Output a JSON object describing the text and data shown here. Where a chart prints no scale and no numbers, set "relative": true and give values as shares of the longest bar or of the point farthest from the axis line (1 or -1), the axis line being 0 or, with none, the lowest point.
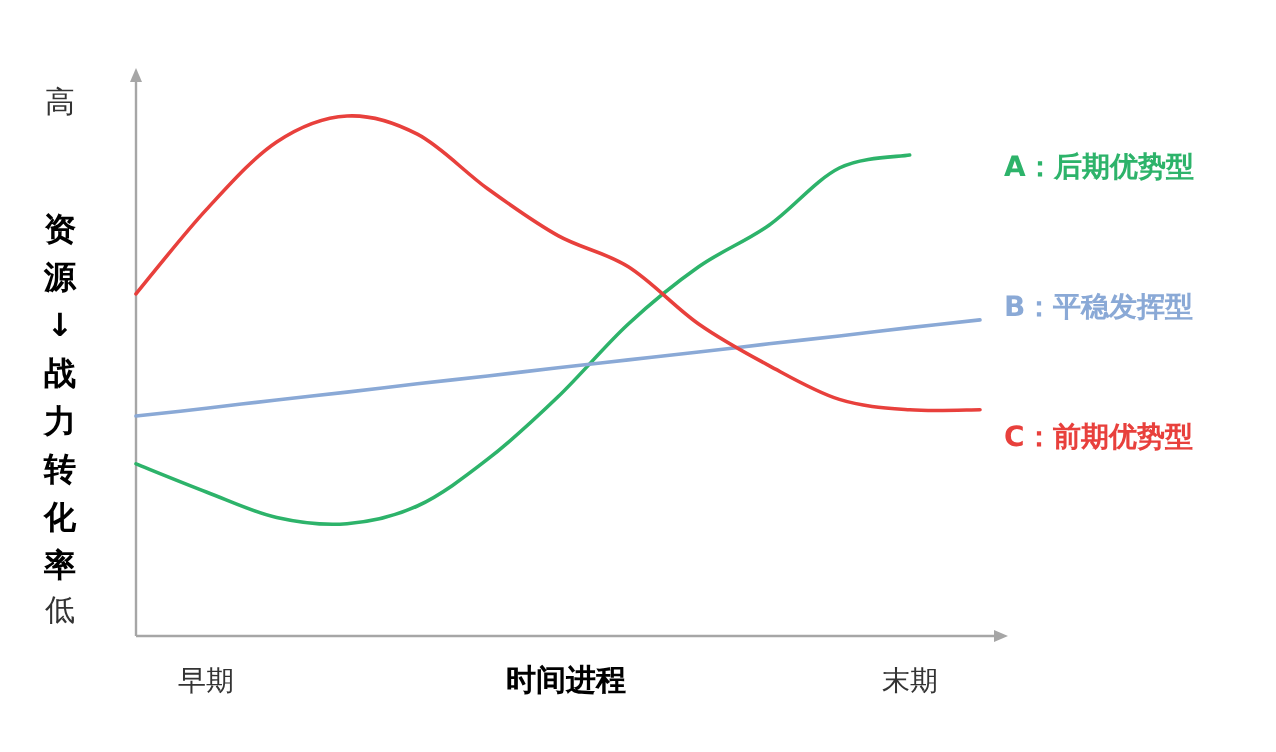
{
  "chart_data": {
    "type": "line",
    "relative": true,
    "xlabel": "时间进程",
    "ylabel": "资源↓战力转化率",
    "annotations": [
      "高",
      "低"
    ],
    "categories": [
      null,
      "早期",
      null,
      null,
      null,
      null,
      null,
      null,
      null,
      null,
      null,
      "末期",
      null
    ],
    "legend": "right",
    "marker": "none",
    "line_style": "solid",
    "series": [
      {
        "name": "A：后期优势型",
        "color": "#2db36a",
        "values": [
          0.331,
          0.277,
          0.228,
          0.216,
          0.25,
          0.34,
          0.46,
          0.6,
          0.71,
          0.79,
          0.9,
          0.925,
          null
        ]
      },
      {
        "name": "B：平稳发挥型",
        "color": "#8aa9d6",
        "values": [
          0.423,
          0.438,
          0.454,
          0.469,
          0.485,
          0.5,
          0.516,
          0.531,
          0.546,
          0.562,
          0.577,
          0.593,
          0.608
        ]
      },
      {
        "name": "C：前期优势型",
        "color": "#e8403c",
        "values": [
          0.658,
          0.82,
          0.95,
          1,
          0.965,
          0.86,
          0.77,
          0.71,
          0.6,
          0.52,
          0.455,
          0.435,
          0.435
        ]
      }
    ]
  }
}
